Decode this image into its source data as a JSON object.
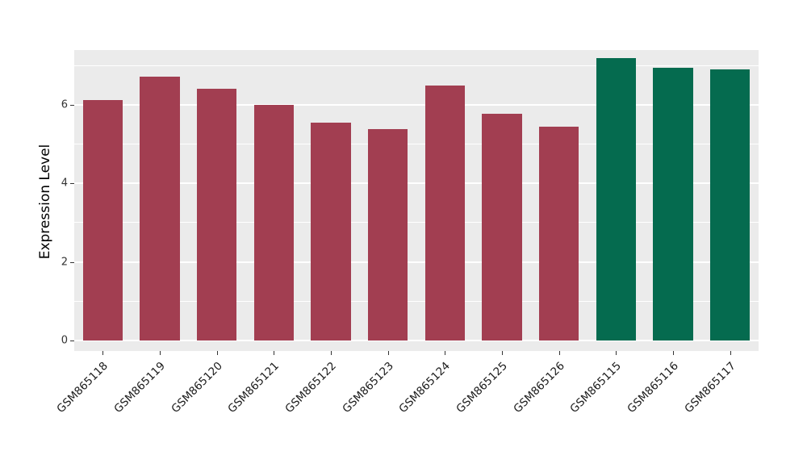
{
  "chart_data": {
    "type": "bar",
    "title": "",
    "xlabel": "",
    "ylabel": "Expression Level",
    "categories": [
      "GSM865118",
      "GSM865119",
      "GSM865120",
      "GSM865121",
      "GSM865122",
      "GSM865123",
      "GSM865124",
      "GSM865125",
      "GSM865126",
      "GSM865115",
      "GSM865116",
      "GSM865117"
    ],
    "values": [
      6.13,
      6.72,
      6.41,
      6.0,
      5.55,
      5.39,
      6.5,
      5.77,
      5.45,
      7.2,
      6.95,
      6.9
    ],
    "bar_colors": [
      "#A23E51",
      "#A23E51",
      "#A23E51",
      "#A23E51",
      "#A23E51",
      "#A23E51",
      "#A23E51",
      "#A23E51",
      "#A23E51",
      "#056B4F",
      "#056B4F",
      "#056B4F"
    ],
    "group_colors": {
      "red": "#A23E51",
      "green": "#056B4F"
    },
    "ylim": [
      -0.27,
      7.4
    ],
    "yticks": [
      0,
      2,
      4,
      6
    ],
    "ytick_labels": [
      "0",
      "2",
      "4",
      "6"
    ],
    "minor_yticks": [
      1,
      3,
      5,
      7
    ],
    "grid": "on",
    "legend": "none",
    "panel_bg": "#EBEBEB",
    "grid_color": "#FFFFFF",
    "bar_width_fraction": 0.7
  }
}
